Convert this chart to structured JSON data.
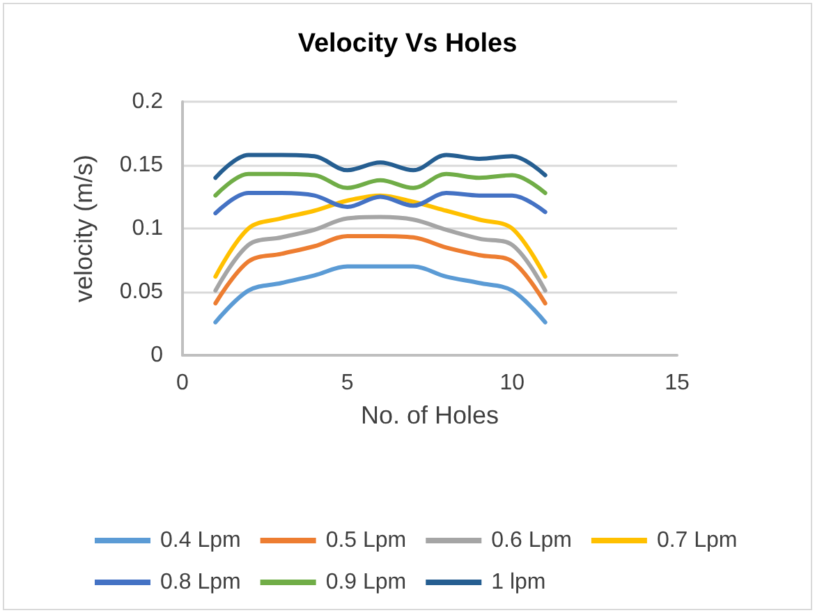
{
  "chart_data": {
    "type": "line",
    "title": "Velocity Vs Holes",
    "xlabel": "No. of Holes",
    "ylabel": "velocity (m/s)",
    "x": [
      1,
      2,
      3,
      4,
      5,
      6,
      7,
      8,
      9,
      10,
      11
    ],
    "series": [
      {
        "name": "0.4 Lpm",
        "color": "#5b9bd5",
        "values": [
          0.026,
          0.051,
          0.057,
          0.063,
          0.07,
          0.07,
          0.07,
          0.062,
          0.057,
          0.051,
          0.026
        ]
      },
      {
        "name": "0.5 Lpm",
        "color": "#ed7d31",
        "values": [
          0.041,
          0.074,
          0.08,
          0.086,
          0.094,
          0.094,
          0.093,
          0.085,
          0.079,
          0.074,
          0.041
        ]
      },
      {
        "name": "0.6 Lpm",
        "color": "#a5a5a5",
        "values": [
          0.051,
          0.087,
          0.093,
          0.099,
          0.108,
          0.109,
          0.107,
          0.099,
          0.092,
          0.087,
          0.051
        ]
      },
      {
        "name": "0.7 Lpm",
        "color": "#ffc000",
        "values": [
          0.062,
          0.1,
          0.108,
          0.114,
          0.122,
          0.126,
          0.121,
          0.114,
          0.107,
          0.1,
          0.062
        ]
      },
      {
        "name": "0.8 Lpm",
        "color": "#4472c4",
        "values": [
          0.112,
          0.128,
          0.128,
          0.126,
          0.117,
          0.125,
          0.118,
          0.128,
          0.126,
          0.126,
          0.113
        ]
      },
      {
        "name": "0.9 Lpm",
        "color": "#70ad47",
        "values": [
          0.126,
          0.143,
          0.143,
          0.142,
          0.132,
          0.138,
          0.132,
          0.143,
          0.14,
          0.142,
          0.128
        ]
      },
      {
        "name": "1 lpm",
        "color": "#255e91",
        "values": [
          0.14,
          0.158,
          0.158,
          0.157,
          0.146,
          0.152,
          0.146,
          0.158,
          0.155,
          0.157,
          0.142
        ]
      }
    ],
    "xlim": [
      0,
      15
    ],
    "xticks": [
      0,
      5,
      10,
      15
    ],
    "ylim": [
      0,
      0.2
    ],
    "yticks": [
      0,
      0.05,
      0.1,
      0.15,
      0.2
    ],
    "grid": "y",
    "legend": "bottom",
    "marker": "none",
    "line_style": "solid"
  }
}
